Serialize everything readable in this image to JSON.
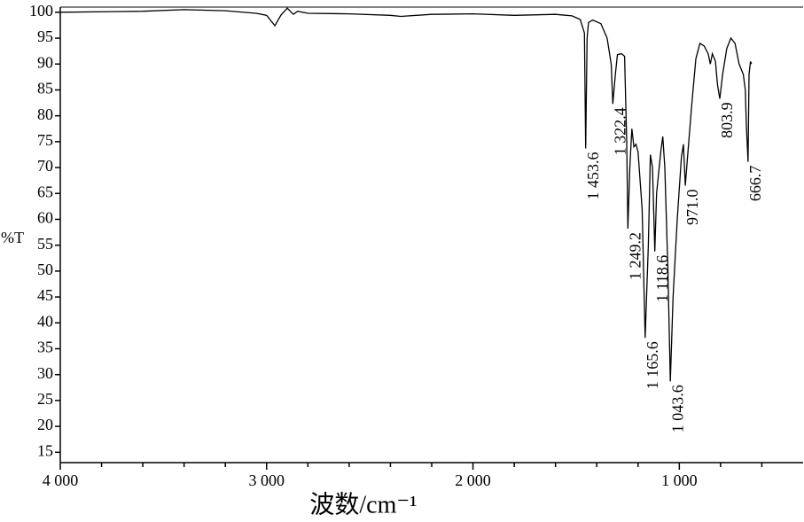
{
  "chart_data": {
    "type": "line",
    "x_label": "波数/cm⁻¹",
    "y_label": "%T",
    "xlim": [
      4000,
      400
    ],
    "ylim": [
      13,
      101
    ],
    "xticks": [
      {
        "value": 4000,
        "label": "4 000"
      },
      {
        "value": 3000,
        "label": "3 000"
      },
      {
        "value": 2000,
        "label": "2 000"
      },
      {
        "value": 1000,
        "label": "1 000"
      }
    ],
    "xminorticks": [
      3800,
      3600,
      3400,
      3200,
      2800,
      2600,
      2400,
      2200,
      1800,
      1600,
      1400,
      1200,
      800,
      600
    ],
    "yticks": [
      15,
      20,
      25,
      30,
      35,
      40,
      45,
      50,
      55,
      60,
      65,
      70,
      75,
      80,
      85,
      90,
      95,
      100
    ],
    "color": "#000000",
    "x": [
      4000,
      3600,
      3400,
      3200,
      3050,
      3000,
      2960,
      2930,
      2900,
      2870,
      2850,
      2800,
      2600,
      2400,
      2350,
      2200,
      2000,
      1800,
      1600,
      1520,
      1480,
      1460,
      1453.6,
      1447,
      1440,
      1420,
      1380,
      1350,
      1330,
      1322.4,
      1310,
      1300,
      1280,
      1265,
      1255,
      1249.2,
      1240,
      1230,
      1220,
      1210,
      1200,
      1180,
      1165.6,
      1150,
      1140,
      1130,
      1118.6,
      1110,
      1090,
      1080,
      1070,
      1055,
      1043.6,
      1030,
      1010,
      990,
      980,
      971,
      960,
      940,
      920,
      900,
      880,
      860,
      850,
      840,
      825,
      815,
      803.9,
      790,
      770,
      750,
      730,
      710,
      690,
      680,
      675,
      666.7,
      662,
      655,
      650
    ],
    "values": [
      100,
      100.2,
      100.5,
      100.3,
      99.8,
      99.4,
      97.4,
      99.5,
      100.8,
      99.6,
      100.2,
      99.8,
      99.7,
      99.4,
      99.2,
      99.6,
      99.7,
      99.4,
      99.6,
      99.3,
      98.6,
      96,
      73.7,
      95,
      98,
      98.5,
      97.8,
      95,
      90,
      82.3,
      88,
      91.8,
      92,
      91.5,
      75,
      58.2,
      70,
      77.5,
      74,
      74.5,
      73,
      62,
      37.1,
      55,
      72.5,
      70,
      53.8,
      65,
      73,
      76,
      70,
      50,
      28.7,
      45,
      60,
      72,
      74.5,
      66.5,
      72,
      82,
      91,
      94,
      93.5,
      92,
      90,
      92,
      90.5,
      86,
      83.3,
      88,
      93,
      95,
      94,
      90,
      88,
      85,
      78,
      71.1,
      88,
      90.5,
      90
    ],
    "annotations": [
      {
        "text": "1 453.6",
        "x": 1453.6,
        "y": 73.7
      },
      {
        "text": "1 322.4",
        "x": 1322.4,
        "y": 82.3
      },
      {
        "text": "1 249.2",
        "x": 1249.2,
        "y": 58.2
      },
      {
        "text": "1 165.6",
        "x": 1165.6,
        "y": 37.1
      },
      {
        "text": "1 118.6",
        "x": 1118.6,
        "y": 53.8
      },
      {
        "text": "1 043.6",
        "x": 1043.6,
        "y": 28.7
      },
      {
        "text": "971.0",
        "x": 971.0,
        "y": 66.5
      },
      {
        "text": "803.9",
        "x": 803.9,
        "y": 83.3
      },
      {
        "text": "666.7",
        "x": 666.7,
        "y": 71.1
      }
    ]
  }
}
